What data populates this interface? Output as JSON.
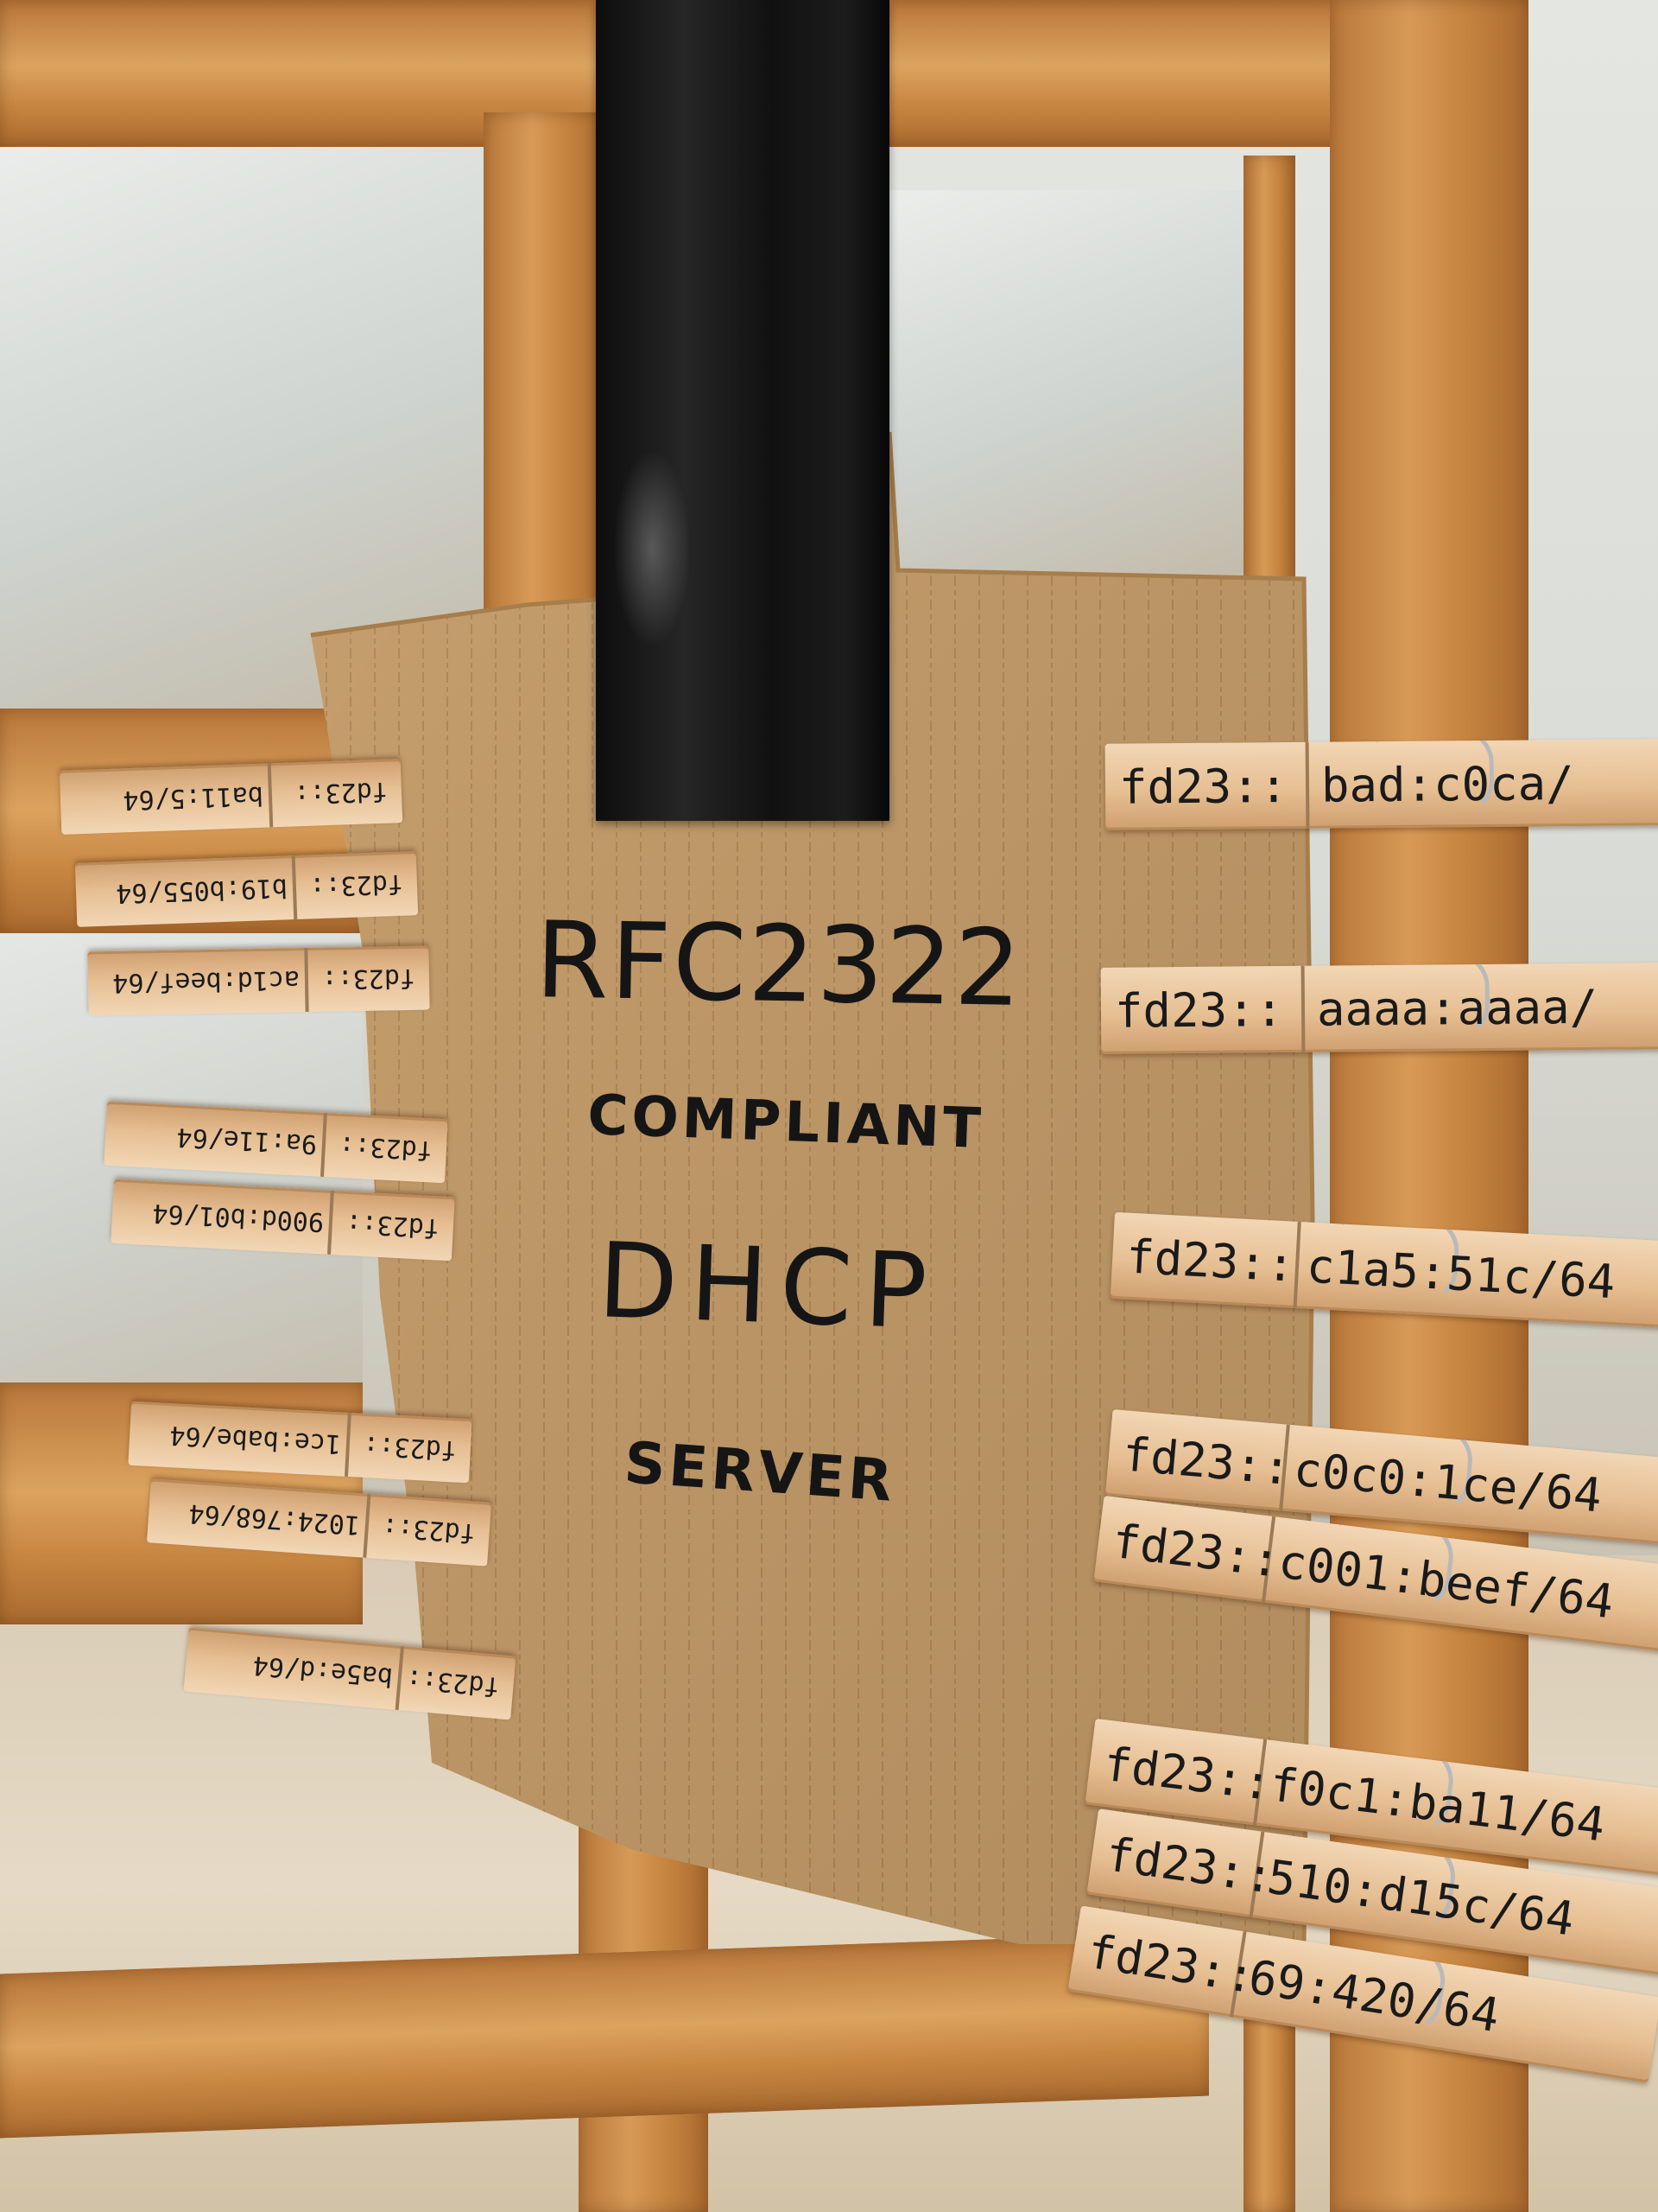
{
  "sign": {
    "line1": "RFC2322",
    "line2": "COMPLIANT",
    "line3": "DHCP",
    "line4": "SERVER"
  },
  "left_pins": [
    {
      "prefix": "fd23::",
      "suffix": "ba11:5/64"
    },
    {
      "prefix": "fd23::",
      "suffix": "b19:b055/64"
    },
    {
      "prefix": "fd23::",
      "suffix": "ac1d:beef/64"
    },
    {
      "prefix": "fd23::",
      "suffix": "9a:11e/64"
    },
    {
      "prefix": "fd23::",
      "suffix": "900d:b01/64"
    },
    {
      "prefix": "fd23::",
      "suffix": "1ce:babe/64"
    },
    {
      "prefix": "fd23::",
      "suffix": "1024:768/64"
    },
    {
      "prefix": "fd23::",
      "suffix": "ba5e:d/64"
    }
  ],
  "right_pins": [
    {
      "prefix": "fd23::",
      "suffix": "bad:c0ca/"
    },
    {
      "prefix": "fd23::",
      "suffix": "aaaa:aaaa/"
    },
    {
      "prefix": "fd23::",
      "suffix": "c1a5:51c/64"
    },
    {
      "prefix": "fd23::",
      "suffix": "c0c0:1ce/64"
    },
    {
      "prefix": "fd23::",
      "suffix": "c001:beef/64"
    },
    {
      "prefix": "fd23::",
      "suffix": "f0c1:ba11/64"
    },
    {
      "prefix": "fd23::",
      "suffix": "510:d15c/64"
    },
    {
      "prefix": "fd23::",
      "suffix": "69:420/64"
    }
  ]
}
